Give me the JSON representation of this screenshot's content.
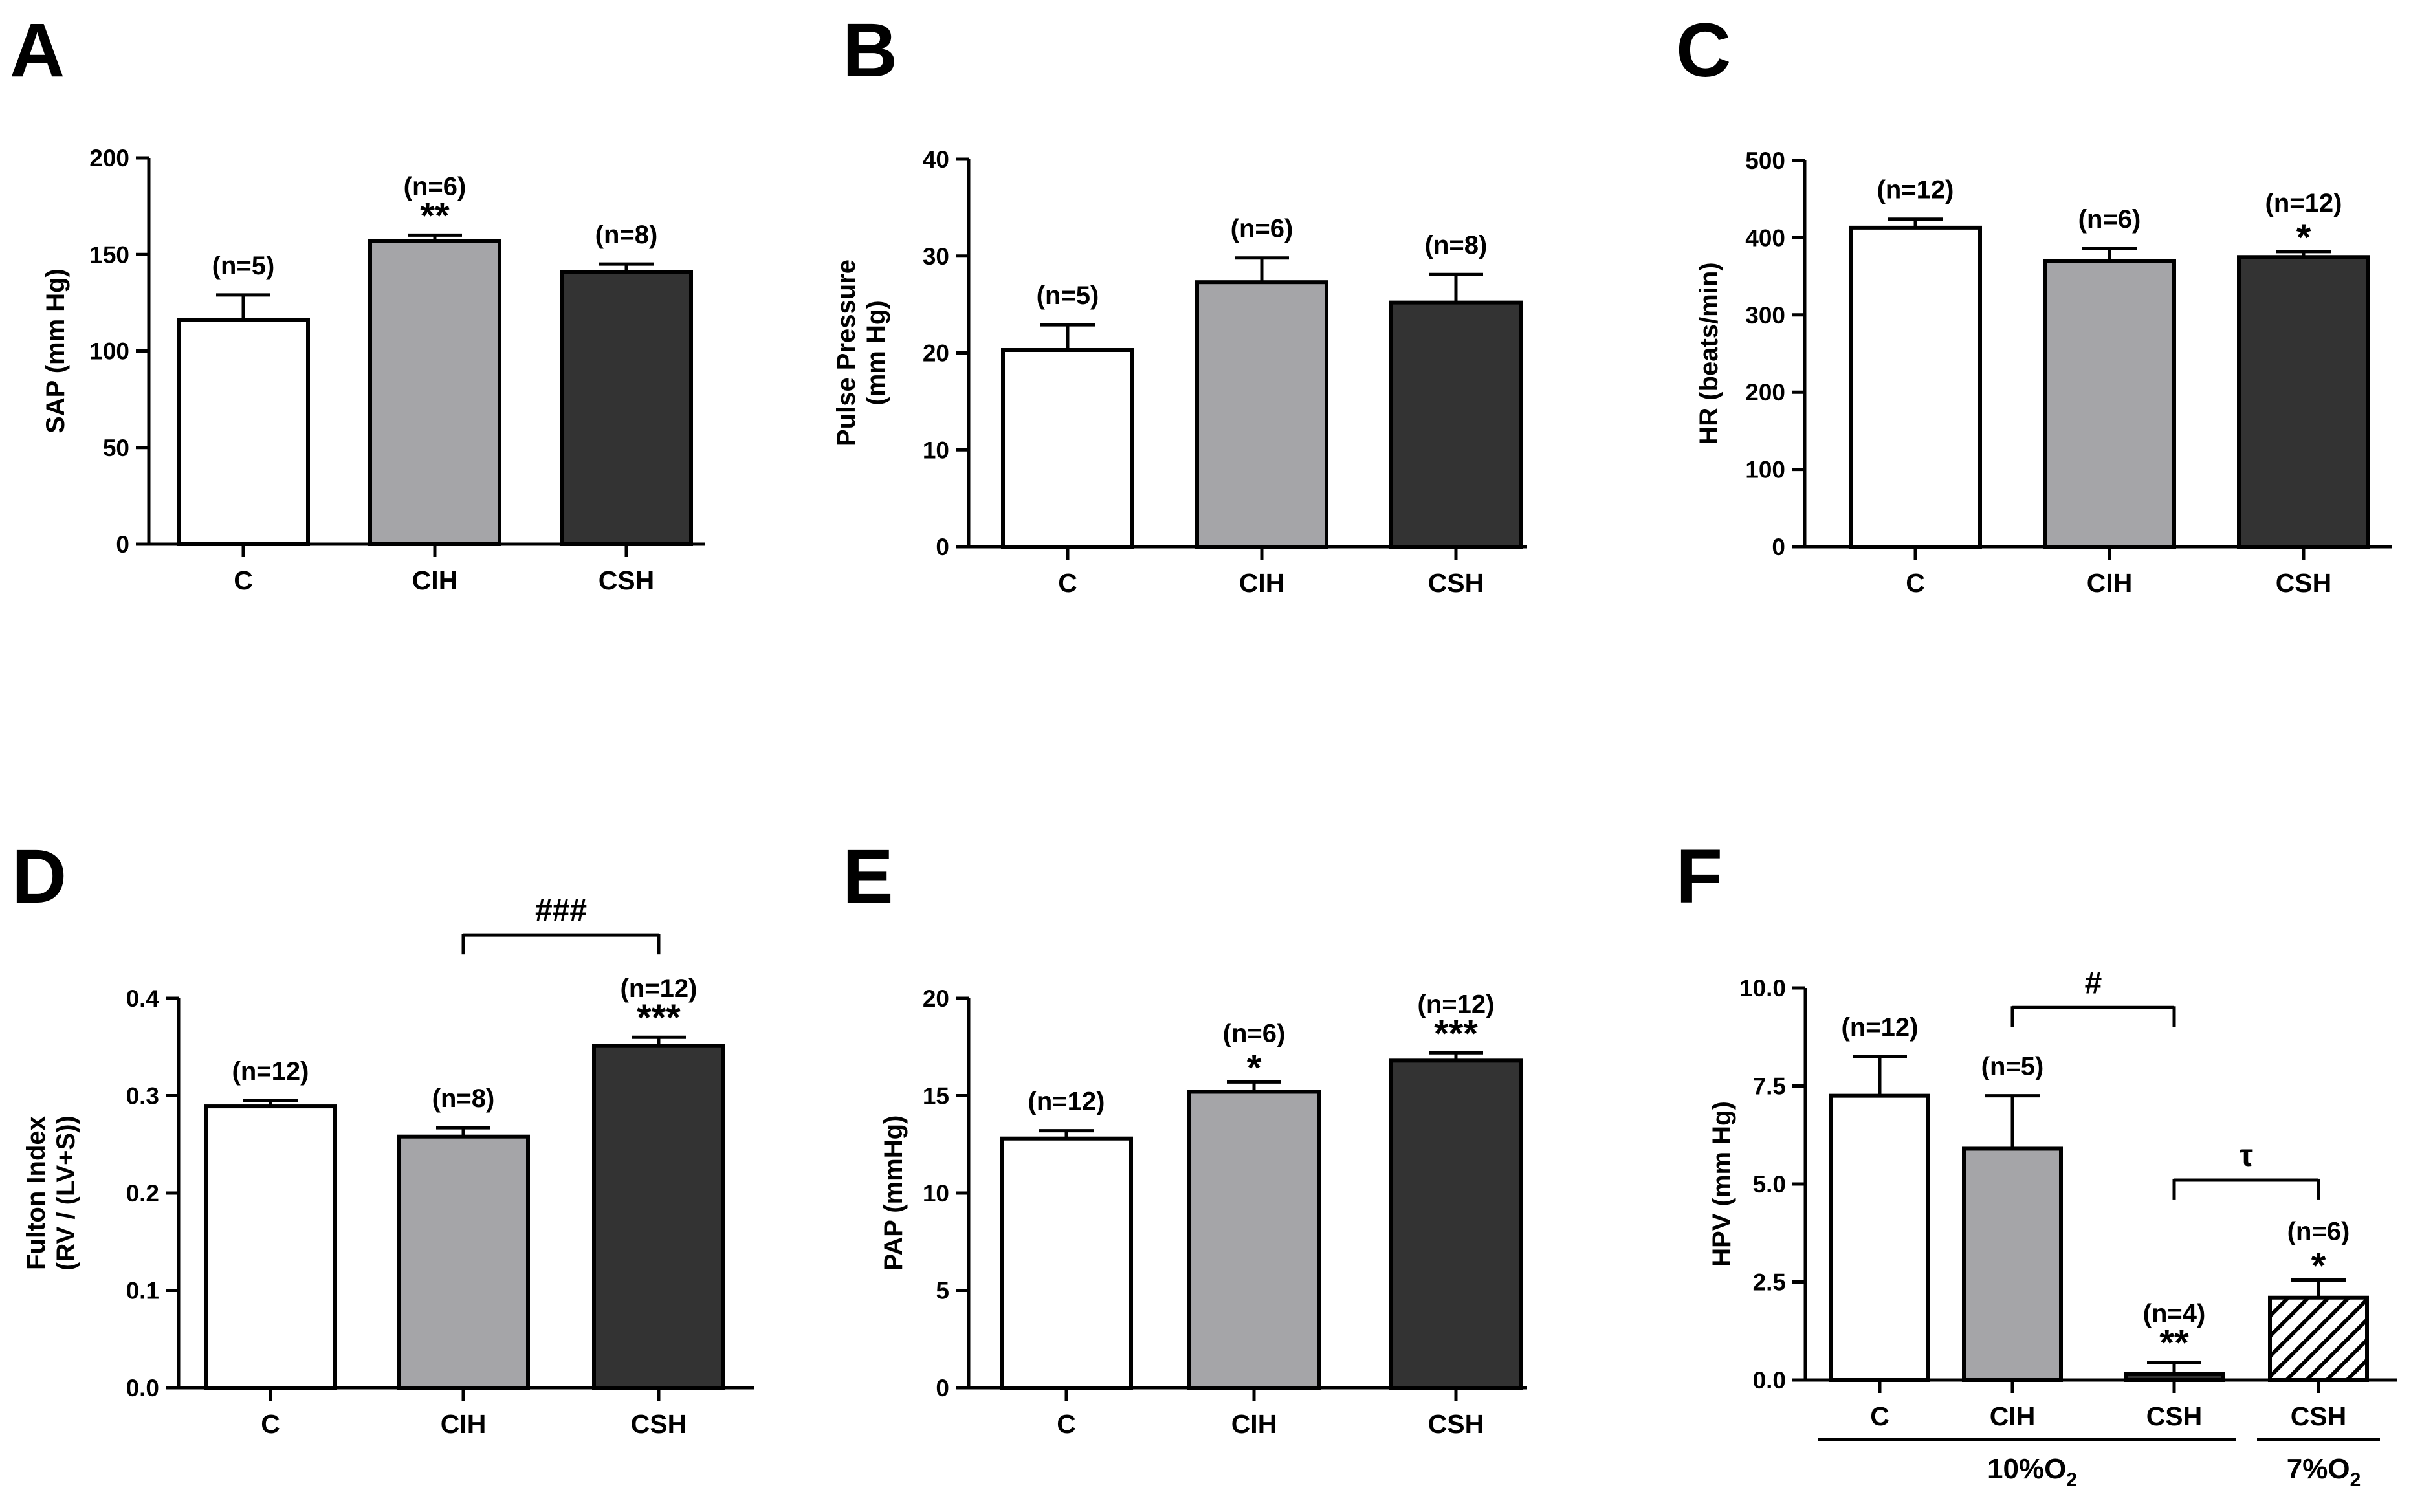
{
  "chart_data": [
    {
      "panel": "A",
      "type": "bar",
      "ylabel": "SAP (mm Hg)",
      "ylim": [
        0,
        200
      ],
      "yticks": [
        0,
        50,
        100,
        150,
        200
      ],
      "ytick_labels": [
        "0",
        "50",
        "100",
        "150",
        "200"
      ],
      "categories": [
        "C",
        "CIH",
        "CSH"
      ],
      "values": [
        116,
        157,
        141
      ],
      "errors": [
        13,
        3,
        4
      ],
      "fills": [
        "#ffffff",
        "#a5a5a8",
        "#333333"
      ],
      "n_labels": [
        "(n=5)",
        "(n=6)",
        "(n=8)"
      ],
      "sig": [
        "",
        "**",
        ""
      ],
      "brackets": []
    },
    {
      "panel": "B",
      "type": "bar",
      "ylabel": "Pulse Pressure (mm Hg)",
      "ylabel_lines": [
        "Pulse Pressure",
        "(mm Hg)"
      ],
      "ylim": [
        0,
        40
      ],
      "yticks": [
        0,
        10,
        20,
        30,
        40
      ],
      "ytick_labels": [
        "0",
        "10",
        "20",
        "30",
        "40"
      ],
      "categories": [
        "C",
        "CIH",
        "CSH"
      ],
      "values": [
        20.3,
        27.3,
        25.2
      ],
      "errors": [
        2.6,
        2.5,
        2.9
      ],
      "fills": [
        "#ffffff",
        "#a5a5a8",
        "#333333"
      ],
      "n_labels": [
        "(n=5)",
        "(n=6)",
        "(n=8)"
      ],
      "sig": [
        "",
        "",
        ""
      ],
      "brackets": []
    },
    {
      "panel": "C",
      "type": "bar",
      "ylabel": "HR (beats/min)",
      "ylim": [
        0,
        500
      ],
      "yticks": [
        0,
        100,
        200,
        300,
        400,
        500
      ],
      "ytick_labels": [
        "0",
        "100",
        "200",
        "300",
        "400",
        "500"
      ],
      "categories": [
        "C",
        "CIH",
        "CSH"
      ],
      "values": [
        413,
        370,
        375
      ],
      "errors": [
        11,
        16,
        7
      ],
      "fills": [
        "#ffffff",
        "#a5a5a8",
        "#333333"
      ],
      "n_labels": [
        "(n=12)",
        "(n=6)",
        "(n=12)"
      ],
      "sig": [
        "",
        "",
        "*"
      ],
      "brackets": []
    },
    {
      "panel": "D",
      "type": "bar",
      "ylabel": "Fulton Index (RV / (LV+S))",
      "ylabel_lines": [
        "Fulton Index",
        "(RV / (LV+S))"
      ],
      "ylim": [
        0,
        0.4
      ],
      "yticks": [
        0,
        0.1,
        0.2,
        0.3,
        0.4
      ],
      "ytick_labels": [
        "0.0",
        "0.1",
        "0.2",
        "0.3",
        "0.4"
      ],
      "categories": [
        "C",
        "CIH",
        "CSH"
      ],
      "values": [
        0.289,
        0.258,
        0.351
      ],
      "errors": [
        0.006,
        0.009,
        0.009
      ],
      "fills": [
        "#ffffff",
        "#a5a5a8",
        "#333333"
      ],
      "n_labels": [
        "(n=12)",
        "(n=8)",
        "(n=12)"
      ],
      "sig": [
        "",
        "",
        "***"
      ],
      "brackets": [
        {
          "from": 1,
          "to": 2,
          "level": 0.465,
          "label": "###"
        }
      ]
    },
    {
      "panel": "E",
      "type": "bar",
      "ylabel": "PAP (mmHg)",
      "ylim": [
        0,
        20
      ],
      "yticks": [
        0,
        5,
        10,
        15,
        20
      ],
      "ytick_labels": [
        "0",
        "5",
        "10",
        "15",
        "20"
      ],
      "categories": [
        "C",
        "CIH",
        "CSH"
      ],
      "values": [
        12.8,
        15.2,
        16.8
      ],
      "errors": [
        0.4,
        0.5,
        0.4
      ],
      "fills": [
        "#ffffff",
        "#a5a5a8",
        "#333333"
      ],
      "n_labels": [
        "(n=12)",
        "(n=6)",
        "(n=12)"
      ],
      "sig": [
        "",
        "*",
        "***"
      ],
      "brackets": []
    },
    {
      "panel": "F",
      "type": "bar",
      "ylabel": "HPV (mm Hg)",
      "ylim": [
        0,
        10
      ],
      "yticks": [
        0,
        2.5,
        5,
        7.5,
        10
      ],
      "ytick_labels": [
        "0.0",
        "2.5",
        "5.0",
        "7.5",
        "10.0"
      ],
      "categories": [
        "C",
        "CIH",
        "CSH",
        "CSH"
      ],
      "values": [
        7.25,
        5.9,
        0.15,
        2.1
      ],
      "errors": [
        1.0,
        1.35,
        0.3,
        0.45
      ],
      "fills": [
        "#ffffff",
        "#a5a5a8",
        "#333333",
        "hatch"
      ],
      "n_labels": [
        "(n=12)",
        "(n=5)",
        "(n=4)",
        "(n=6)"
      ],
      "sig": [
        "",
        "",
        "**",
        "*"
      ],
      "brackets": [
        {
          "from": 1,
          "to": 2,
          "level": 9.5,
          "label": "#"
        },
        {
          "from": 2,
          "to": 3,
          "level": 5.1,
          "label": "τ"
        }
      ],
      "groups": [
        {
          "from": 0,
          "to": 2,
          "label": "10%O",
          "sub": "2"
        },
        {
          "from": 3,
          "to": 3,
          "label": "7%O",
          "sub": "2"
        }
      ]
    }
  ]
}
